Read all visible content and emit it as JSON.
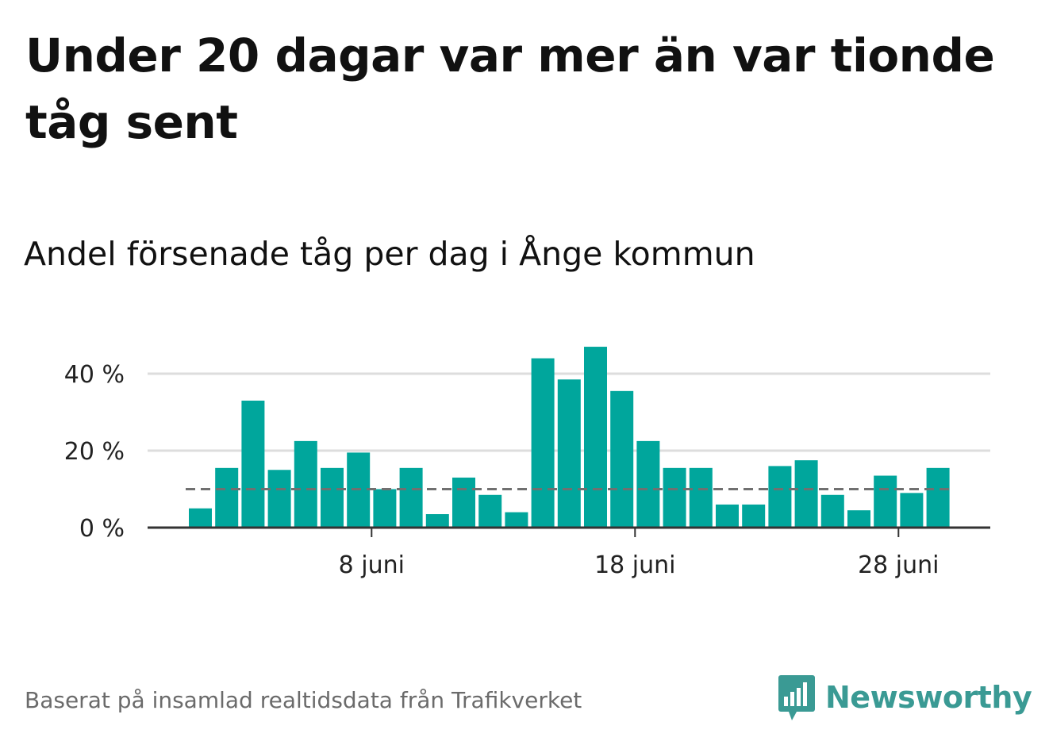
{
  "header": {
    "title": "Under 20 dagar var mer än var tionde tåg sent",
    "subtitle": "Andel försenade tåg per dag i Ånge kommun"
  },
  "footer": {
    "source": "Baserat på insamlad realtidsdata från Trafikverket",
    "brand": "Newsworthy"
  },
  "colors": {
    "bar": "#00a69c",
    "reference_line": "#707070",
    "grid": "#dddddd",
    "axis": "#333333",
    "brand": "#3a9a94"
  },
  "chart_data": {
    "type": "bar",
    "categories": [
      "1 juni",
      "2 juni",
      "3 juni",
      "4 juni",
      "5 juni",
      "6 juni",
      "7 juni",
      "8 juni",
      "9 juni",
      "10 juni",
      "11 juni",
      "12 juni",
      "13 juni",
      "14 juni",
      "15 juni",
      "16 juni",
      "17 juni",
      "18 juni",
      "19 juni",
      "20 juni",
      "21 juni",
      "22 juni",
      "23 juni",
      "24 juni",
      "25 juni",
      "26 juni",
      "27 juni",
      "28 juni",
      "29 juni"
    ],
    "values": [
      5,
      15.5,
      33,
      15,
      22.5,
      15.5,
      19.5,
      10,
      15.5,
      3.5,
      13,
      8.5,
      4,
      44,
      38.5,
      47,
      35.5,
      22.5,
      15.5,
      15.5,
      6,
      6,
      16,
      17.5,
      8.5,
      4.5,
      13.5,
      9,
      15.5
    ],
    "reference_value": 10,
    "ylim": [
      0,
      50
    ],
    "yticks": [
      0,
      20,
      40
    ],
    "ytick_labels": [
      "0 %",
      "20 %",
      "40 %"
    ],
    "xticks": [
      {
        "category": "8 juni",
        "label": "8 juni"
      },
      {
        "category": "18 juni",
        "label": "18 juni"
      },
      {
        "category": "28 juni",
        "label": "28 juni"
      }
    ],
    "grid": true
  }
}
